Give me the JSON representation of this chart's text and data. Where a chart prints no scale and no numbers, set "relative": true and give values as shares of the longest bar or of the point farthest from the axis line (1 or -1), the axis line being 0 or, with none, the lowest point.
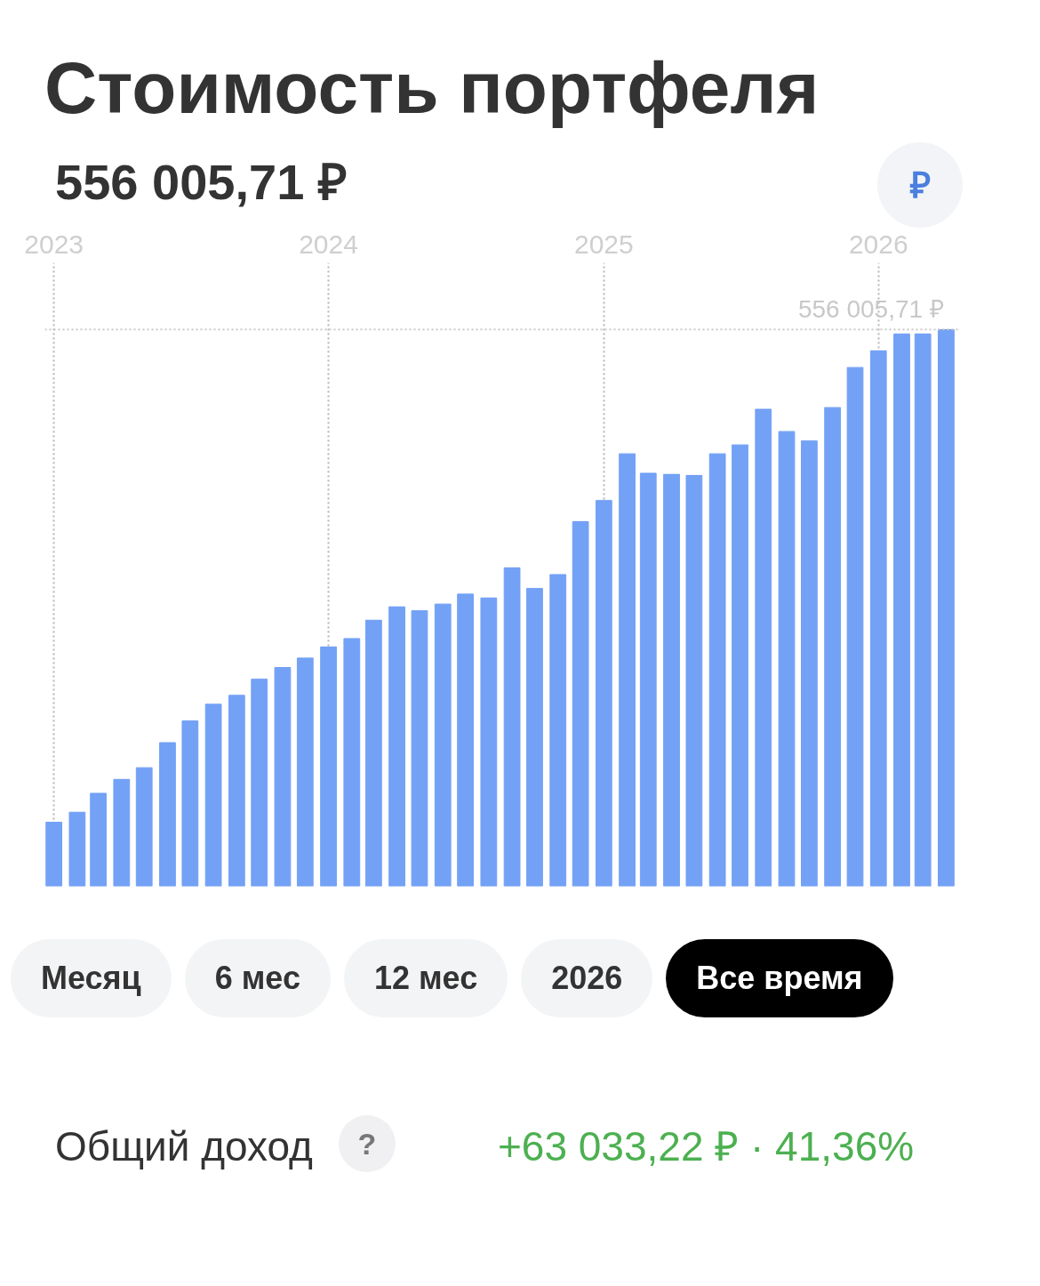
{
  "chart_data": {
    "type": "bar",
    "title": "Стоимость портфеля",
    "subtitle": "556 005,71 ₽",
    "x": [
      "2023-01",
      "2023-02",
      "2023-03",
      "2023-04",
      "2023-05",
      "2023-06",
      "2023-07",
      "2023-08",
      "2023-09",
      "2023-10",
      "2023-11",
      "2023-12",
      "2024-01",
      "2024-02",
      "2024-03",
      "2024-04",
      "2024-05",
      "2024-06",
      "2024-07",
      "2024-08",
      "2024-09",
      "2024-10",
      "2024-11",
      "2024-12",
      "2025-01",
      "2025-02",
      "2025-03",
      "2025-04",
      "2025-05",
      "2025-06",
      "2025-07",
      "2025-08",
      "2025-09",
      "2025-10",
      "2025-11",
      "2025-12",
      "2026-01",
      "2026-02",
      "2026-03",
      "2026-04"
    ],
    "values": [
      0.115,
      0.133,
      0.167,
      0.192,
      0.213,
      0.258,
      0.297,
      0.327,
      0.343,
      0.372,
      0.393,
      0.41,
      0.43,
      0.445,
      0.478,
      0.502,
      0.495,
      0.507,
      0.525,
      0.518,
      0.572,
      0.535,
      0.56,
      0.655,
      0.693,
      0.777,
      0.742,
      0.74,
      0.738,
      0.777,
      0.793,
      0.857,
      0.817,
      0.8,
      0.86,
      0.932,
      0.962,
      0.992,
      0.992,
      1.0
    ],
    "color": "#73a1f5",
    "relative": true,
    "xlim": [
      "2022-12-20",
      "2026-04-20"
    ],
    "xticks": [
      "2023",
      "2024",
      "2025",
      "2026"
    ],
    "grid": "x",
    "ref_lines": [
      {
        "axis": "y",
        "value": 1,
        "label": "556 005,71 ₽",
        "line_style": "dotted",
        "color": "#c8c8c8"
      }
    ],
    "annotations": [
      "₽",
      "Месяц",
      "6 мес",
      "12 мес",
      "2026",
      "Все время",
      "Общий доход",
      "?",
      "+63 033,22 ₽ · 41,36%"
    ]
  }
}
